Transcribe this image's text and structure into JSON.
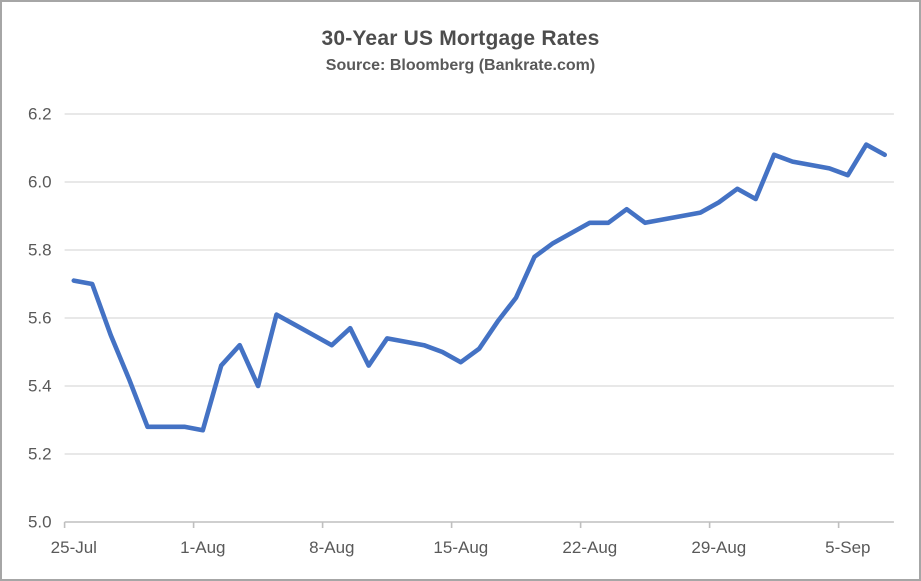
{
  "chart_data": {
    "type": "line",
    "title": "30-Year US Mortgage Rates",
    "subtitle": "Source: Bloomberg (Bankrate.com)",
    "series": [
      {
        "name": "30-Year US Mortgage Rate (%)",
        "values": [
          5.71,
          5.7,
          5.55,
          5.42,
          5.28,
          5.28,
          5.28,
          5.27,
          5.46,
          5.52,
          5.4,
          5.61,
          5.58,
          5.55,
          5.52,
          5.57,
          5.46,
          5.54,
          5.53,
          5.52,
          5.5,
          5.47,
          5.51,
          5.59,
          5.66,
          5.78,
          5.82,
          5.85,
          5.88,
          5.88,
          5.92,
          5.88,
          5.89,
          5.9,
          5.91,
          5.94,
          5.98,
          5.95,
          6.08,
          6.06,
          6.05,
          6.04,
          6.02,
          6.11,
          6.08
        ]
      }
    ],
    "x": [
      "25-Jul",
      "26-Jul",
      "27-Jul",
      "28-Jul",
      "29-Jul",
      "30-Jul",
      "31-Jul",
      "1-Aug",
      "2-Aug",
      "3-Aug",
      "4-Aug",
      "5-Aug",
      "6-Aug",
      "7-Aug",
      "8-Aug",
      "9-Aug",
      "10-Aug",
      "11-Aug",
      "12-Aug",
      "13-Aug",
      "14-Aug",
      "15-Aug",
      "16-Aug",
      "17-Aug",
      "18-Aug",
      "19-Aug",
      "20-Aug",
      "21-Aug",
      "22-Aug",
      "23-Aug",
      "24-Aug",
      "25-Aug",
      "26-Aug",
      "27-Aug",
      "28-Aug",
      "29-Aug",
      "30-Aug",
      "31-Aug",
      "1-Sep",
      "2-Sep",
      "3-Sep",
      "4-Sep",
      "5-Sep",
      "6-Sep",
      "7-Sep"
    ],
    "xlabel": "",
    "ylabel": "",
    "ylim": [
      5.0,
      6.2
    ],
    "yticks": [
      5.0,
      5.2,
      5.4,
      5.6,
      5.8,
      6.0,
      6.2
    ],
    "ytick_labels": [
      "5.0",
      "5.2",
      "5.4",
      "5.6",
      "5.8",
      "6.0",
      "6.2"
    ],
    "xtick_labels": [
      "25-Jul",
      "1-Aug",
      "8-Aug",
      "15-Aug",
      "22-Aug",
      "29-Aug",
      "5-Sep"
    ],
    "xtick_indices": [
      0,
      7,
      14,
      21,
      28,
      35,
      42
    ],
    "grid": "horizontal-only",
    "legend": "none",
    "colors": {
      "line": "#4472C4",
      "gridline": "#D9D9D9",
      "axis": "#BFBFBF",
      "tick_text": "#595959",
      "title_text": "#4d4d4d",
      "background": "#FFFFFF",
      "frame_border": "#A6A6A6"
    }
  }
}
